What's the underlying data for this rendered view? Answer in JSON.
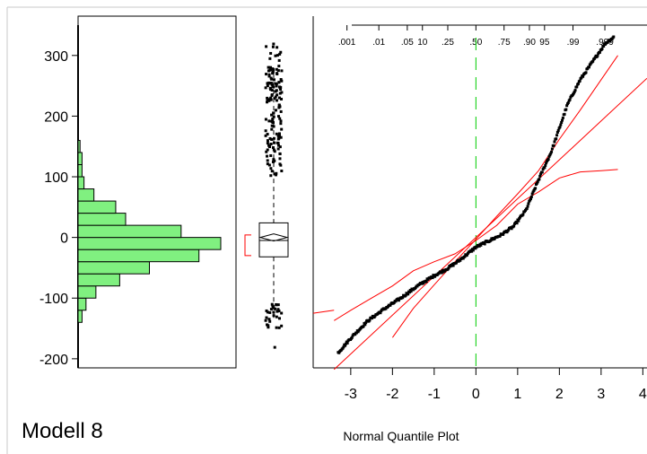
{
  "title": "Modell 8",
  "colors": {
    "histogram_fill": "#80f080",
    "reference_line": "#ff0000",
    "median_line": "#00cc00",
    "points": "#000000"
  },
  "chart_data": [
    {
      "type": "histogram",
      "name": "distribution",
      "orientation": "horizontal",
      "ylim": [
        -215,
        350
      ],
      "yticks": [
        300,
        200,
        100,
        0,
        -100,
        -200
      ],
      "ytick_labels": [
        "300",
        "200",
        "100",
        "0",
        "-100",
        "-200"
      ],
      "bins": [
        {
          "from": -140,
          "to": -120,
          "count": 2
        },
        {
          "from": -120,
          "to": -100,
          "count": 4
        },
        {
          "from": -100,
          "to": -80,
          "count": 9
        },
        {
          "from": -80,
          "to": -60,
          "count": 21
        },
        {
          "from": -60,
          "to": -40,
          "count": 36
        },
        {
          "from": -40,
          "to": -20,
          "count": 61
        },
        {
          "from": -20,
          "to": 0,
          "count": 72
        },
        {
          "from": 0,
          "to": 20,
          "count": 52
        },
        {
          "from": 20,
          "to": 40,
          "count": 24
        },
        {
          "from": 40,
          "to": 60,
          "count": 19
        },
        {
          "from": 60,
          "to": 80,
          "count": 8
        },
        {
          "from": 80,
          "to": 100,
          "count": 3
        },
        {
          "from": 100,
          "to": 120,
          "count": 2
        },
        {
          "from": 120,
          "to": 140,
          "count": 2
        },
        {
          "from": 140,
          "to": 160,
          "count": 1
        }
      ]
    },
    {
      "type": "box",
      "name": "outlier_box_plot",
      "q1": -32,
      "median": -5,
      "q3": 24,
      "mean": 0,
      "whisker_low": -135,
      "whisker_high": 270,
      "shortest_half": [
        -30,
        4
      ],
      "outlier_bands": [
        {
          "from": 100,
          "to": 320,
          "count": 150
        },
        {
          "from": -150,
          "to": -110,
          "count": 30
        },
        {
          "from": -190,
          "to": -175,
          "count": 1
        }
      ]
    },
    {
      "type": "scatter",
      "name": "normal_quantile_plot",
      "xlabel": "Normal Quantile Plot",
      "xlim": [
        -3.9,
        4.1
      ],
      "ylim": [
        -215,
        350
      ],
      "xticks": [
        -3,
        -2,
        -1,
        0,
        1,
        2,
        3,
        4
      ],
      "xtick_labels": [
        "-3",
        "-2",
        "-1",
        "0",
        "1",
        "2",
        "3",
        "4"
      ],
      "prob_ticks": [
        0.001,
        0.01,
        0.05,
        0.1,
        0.25,
        0.5,
        0.75,
        0.9,
        0.95,
        0.99,
        0.999
      ],
      "prob_tick_labels": [
        ".001",
        ".01",
        ".05",
        "10",
        ".25",
        ".50",
        ".75",
        ".90",
        "95",
        ".99",
        ".999"
      ],
      "median_line_x": 0,
      "quantile_curve": [
        [
          -3.3,
          -190
        ],
        [
          -3.0,
          -166
        ],
        [
          -2.6,
          -138
        ],
        [
          -2.2,
          -118
        ],
        [
          -1.8,
          -100
        ],
        [
          -1.4,
          -80
        ],
        [
          -1.0,
          -63
        ],
        [
          -0.7,
          -52
        ],
        [
          -0.4,
          -38
        ],
        [
          -0.2,
          -27
        ],
        [
          0.0,
          -16
        ],
        [
          0.3,
          -6
        ],
        [
          0.6,
          4
        ],
        [
          0.9,
          18
        ],
        [
          1.2,
          45
        ],
        [
          1.5,
          95
        ],
        [
          1.8,
          140
        ],
        [
          2.0,
          180
        ],
        [
          2.2,
          220
        ],
        [
          2.5,
          260
        ],
        [
          2.8,
          290
        ],
        [
          3.1,
          320
        ],
        [
          3.3,
          330
        ]
      ],
      "reference_line": {
        "intercept": 0,
        "slope": 64
      },
      "confidence_upper": [
        [
          -2.0,
          -165
        ],
        [
          -1.5,
          -117
        ],
        [
          -1.0,
          -78
        ],
        [
          -0.5,
          -40
        ],
        [
          0.0,
          -3
        ],
        [
          0.5,
          35
        ],
        [
          1.0,
          72
        ],
        [
          1.5,
          110
        ],
        [
          2.0,
          162
        ],
        [
          2.5,
          210
        ],
        [
          3.0,
          260
        ],
        [
          3.4,
          300
        ]
      ],
      "confidence_lower": [
        [
          -3.4,
          -137
        ],
        [
          -3.0,
          -120
        ],
        [
          -2.5,
          -100
        ],
        [
          -2.0,
          -80
        ],
        [
          -1.5,
          -55
        ],
        [
          -1.0,
          -40
        ],
        [
          -0.5,
          -27
        ],
        [
          0.0,
          -5
        ],
        [
          0.5,
          20
        ],
        [
          1.0,
          55
        ],
        [
          1.5,
          75
        ],
        [
          2.0,
          98
        ],
        [
          2.5,
          108
        ],
        [
          3.0,
          110
        ],
        [
          3.4,
          112
        ]
      ]
    }
  ]
}
